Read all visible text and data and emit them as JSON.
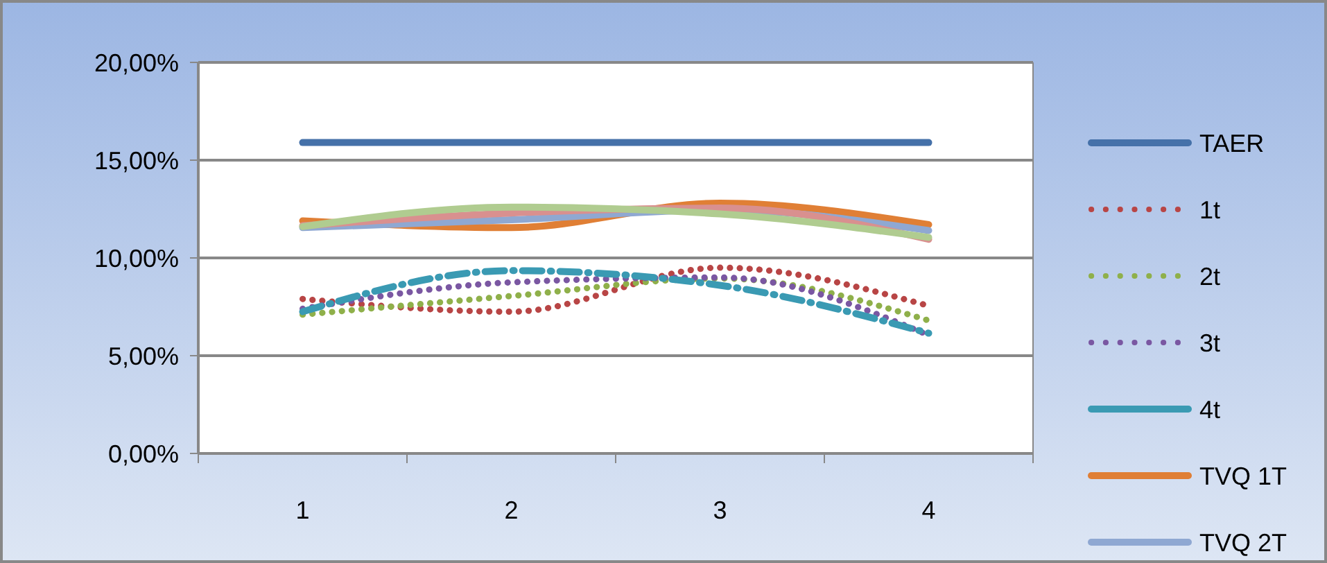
{
  "chart_data": {
    "type": "line",
    "categories": [
      "1",
      "2",
      "3",
      "4"
    ],
    "ylim": [
      0,
      20
    ],
    "yticks": [
      {
        "value": 0,
        "label": "0,00%"
      },
      {
        "value": 5,
        "label": "5,00%"
      },
      {
        "value": 10,
        "label": "10,00%"
      },
      {
        "value": 15,
        "label": "15,00%"
      },
      {
        "value": 20,
        "label": "20,00%"
      }
    ],
    "grid": "y",
    "legend": "right",
    "series": [
      {
        "name": "TAER",
        "color": "#4571a9",
        "values": [
          15.9,
          15.9,
          15.9,
          15.9
        ],
        "line_style": "solid"
      },
      {
        "name": "1t",
        "color": "#b84545",
        "values": [
          7.9,
          7.25,
          9.5,
          7.55
        ],
        "line_style": "dotted"
      },
      {
        "name": "2t",
        "color": "#8fb04a",
        "values": [
          7.1,
          8.05,
          8.95,
          6.8
        ],
        "line_style": "dotted"
      },
      {
        "name": "3t",
        "color": "#7a57a2",
        "values": [
          7.4,
          8.75,
          9.0,
          6.05
        ],
        "line_style": "dotted"
      },
      {
        "name": "4t",
        "color": "#3a9ab3",
        "values": [
          7.25,
          9.35,
          8.6,
          6.15
        ],
        "line_style": "dashed"
      },
      {
        "name": "TVQ 1T",
        "color": "#e07f35",
        "values": [
          11.9,
          11.55,
          12.8,
          11.7
        ],
        "line_style": "solid"
      },
      {
        "name": "TVQ 2T",
        "color": "#8fa8d2",
        "values": [
          11.55,
          11.95,
          12.45,
          11.4
        ],
        "line_style": "solid"
      },
      {
        "color": "#d9908f",
        "values": [
          11.65,
          12.3,
          12.55,
          10.95
        ],
        "line_style": "solid"
      },
      {
        "color": "#b0cc90",
        "values": [
          11.6,
          12.6,
          12.25,
          11.05
        ],
        "line_style": "solid"
      }
    ]
  }
}
